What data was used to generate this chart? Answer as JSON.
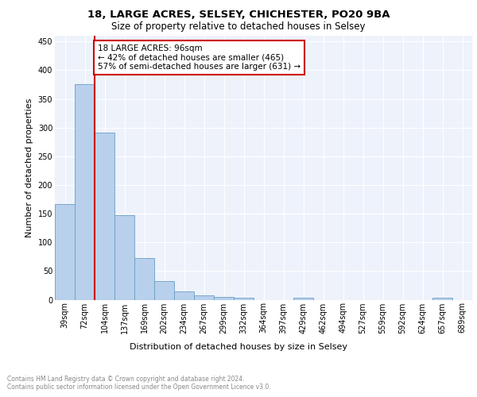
{
  "title1": "18, LARGE ACRES, SELSEY, CHICHESTER, PO20 9BA",
  "title2": "Size of property relative to detached houses in Selsey",
  "xlabel": "Distribution of detached houses by size in Selsey",
  "ylabel": "Number of detached properties",
  "categories": [
    "39sqm",
    "72sqm",
    "104sqm",
    "137sqm",
    "169sqm",
    "202sqm",
    "234sqm",
    "267sqm",
    "299sqm",
    "332sqm",
    "364sqm",
    "397sqm",
    "429sqm",
    "462sqm",
    "494sqm",
    "527sqm",
    "559sqm",
    "592sqm",
    "624sqm",
    "657sqm",
    "689sqm"
  ],
  "values": [
    167,
    376,
    291,
    148,
    72,
    33,
    15,
    7,
    5,
    3,
    0,
    0,
    3,
    0,
    0,
    0,
    0,
    0,
    0,
    3,
    0
  ],
  "bar_color": "#b8d0eb",
  "bar_edge_color": "#6a9ec5",
  "property_line_color": "#cc0000",
  "annotation_text": "18 LARGE ACRES: 96sqm\n← 42% of detached houses are smaller (465)\n57% of semi-detached houses are larger (631) →",
  "annotation_box_color": "#ffffff",
  "annotation_box_edge_color": "#cc0000",
  "ylim": [
    0,
    460
  ],
  "yticks": [
    0,
    50,
    100,
    150,
    200,
    250,
    300,
    350,
    400,
    450
  ],
  "background_color": "#eef2fb",
  "footer_text": "Contains HM Land Registry data © Crown copyright and database right 2024.\nContains public sector information licensed under the Open Government Licence v3.0.",
  "title1_fontsize": 9.5,
  "title2_fontsize": 8.5,
  "xlabel_fontsize": 8,
  "ylabel_fontsize": 8,
  "tick_fontsize": 7,
  "annotation_fontsize": 7.5,
  "footer_fontsize": 5.5
}
